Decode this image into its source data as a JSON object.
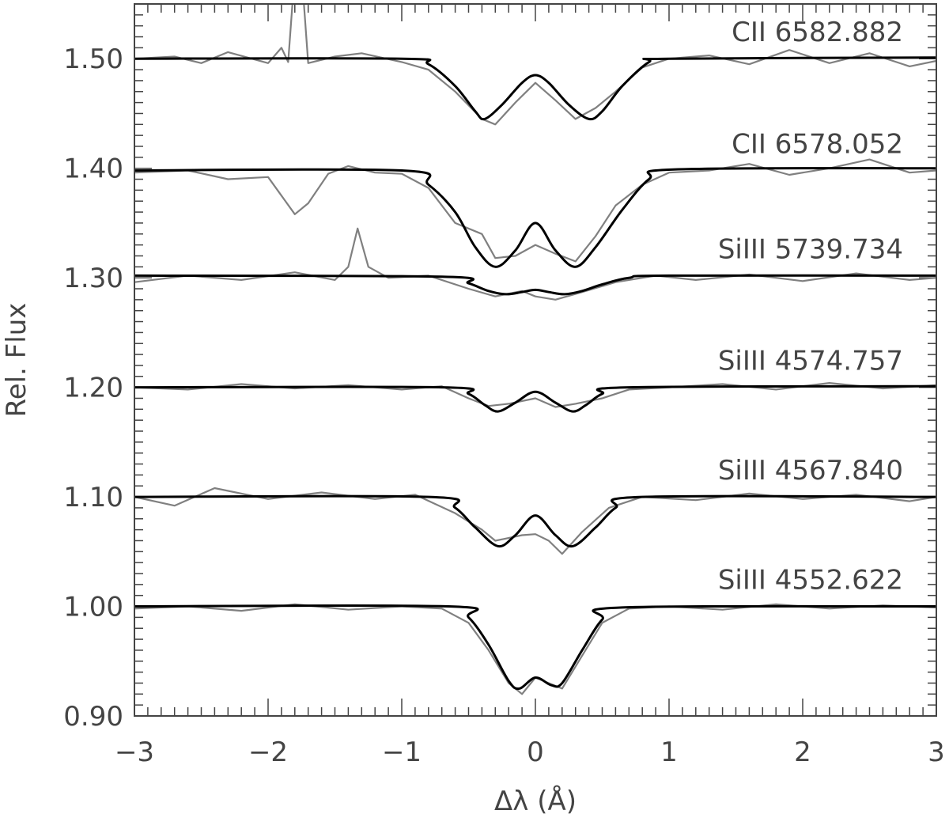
{
  "chart_data": {
    "type": "line",
    "xlabel": "Δλ (Å)",
    "ylabel": "Rel. Flux",
    "xlim": [
      -3,
      3
    ],
    "ylim": [
      0.9,
      1.55
    ],
    "x_ticks": [
      -3,
      -2,
      -1,
      0,
      1,
      2,
      3
    ],
    "x_tick_labels": [
      "−3",
      "−2",
      "−1",
      "0",
      "1",
      "2",
      "3"
    ],
    "y_ticks": [
      0.9,
      1.0,
      1.1,
      1.2,
      1.3,
      1.4,
      1.5
    ],
    "y_tick_labels": [
      "0.90",
      "1.00",
      "1.10",
      "1.20",
      "1.30",
      "1.40",
      "1.50"
    ],
    "colors": {
      "model": "#000000",
      "observed": "#808080"
    },
    "series": [
      {
        "name": "CII 6582.882",
        "continuum": 1.5,
        "model": [
          [
            -3,
            1.5
          ],
          [
            -1.0,
            1.5
          ],
          [
            -0.8,
            1.495
          ],
          [
            -0.6,
            1.475
          ],
          [
            -0.45,
            1.452
          ],
          [
            -0.38,
            1.445
          ],
          [
            -0.25,
            1.458
          ],
          [
            -0.1,
            1.478
          ],
          [
            0,
            1.485
          ],
          [
            0.1,
            1.478
          ],
          [
            0.25,
            1.458
          ],
          [
            0.4,
            1.445
          ],
          [
            0.5,
            1.452
          ],
          [
            0.65,
            1.475
          ],
          [
            0.85,
            1.497
          ],
          [
            1.0,
            1.5
          ],
          [
            3,
            1.501
          ]
        ],
        "observed": [
          [
            -3,
            1.5
          ],
          [
            -2.7,
            1.502
          ],
          [
            -2.5,
            1.496
          ],
          [
            -2.3,
            1.506
          ],
          [
            -2.0,
            1.496
          ],
          [
            -1.9,
            1.51
          ],
          [
            -1.85,
            1.497
          ],
          [
            -1.8,
            1.58
          ],
          [
            -1.75,
            1.58
          ],
          [
            -1.7,
            1.496
          ],
          [
            -1.5,
            1.502
          ],
          [
            -1.3,
            1.505
          ],
          [
            -1.0,
            1.497
          ],
          [
            -0.8,
            1.49
          ],
          [
            -0.6,
            1.47
          ],
          [
            -0.4,
            1.445
          ],
          [
            -0.3,
            1.44
          ],
          [
            -0.15,
            1.46
          ],
          [
            0,
            1.478
          ],
          [
            0.15,
            1.462
          ],
          [
            0.3,
            1.445
          ],
          [
            0.45,
            1.455
          ],
          [
            0.6,
            1.47
          ],
          [
            0.8,
            1.492
          ],
          [
            1.0,
            1.5
          ],
          [
            1.3,
            1.503
          ],
          [
            1.6,
            1.495
          ],
          [
            1.9,
            1.508
          ],
          [
            2.2,
            1.496
          ],
          [
            2.5,
            1.505
          ],
          [
            2.8,
            1.493
          ],
          [
            3,
            1.498
          ]
        ]
      },
      {
        "name": "CII 6578.052",
        "continuum": 1.398,
        "model": [
          [
            -3,
            1.398
          ],
          [
            -1.0,
            1.398
          ],
          [
            -0.8,
            1.385
          ],
          [
            -0.6,
            1.36
          ],
          [
            -0.45,
            1.328
          ],
          [
            -0.3,
            1.31
          ],
          [
            -0.15,
            1.325
          ],
          [
            0,
            1.35
          ],
          [
            0.15,
            1.325
          ],
          [
            0.3,
            1.31
          ],
          [
            0.45,
            1.328
          ],
          [
            0.65,
            1.362
          ],
          [
            0.85,
            1.39
          ],
          [
            1.05,
            1.399
          ],
          [
            3,
            1.4
          ]
        ],
        "observed": [
          [
            -3,
            1.396
          ],
          [
            -2.6,
            1.398
          ],
          [
            -2.3,
            1.39
          ],
          [
            -2.0,
            1.392
          ],
          [
            -1.9,
            1.375
          ],
          [
            -1.8,
            1.358
          ],
          [
            -1.7,
            1.368
          ],
          [
            -1.55,
            1.395
          ],
          [
            -1.4,
            1.402
          ],
          [
            -1.2,
            1.396
          ],
          [
            -1.0,
            1.395
          ],
          [
            -0.8,
            1.382
          ],
          [
            -0.6,
            1.35
          ],
          [
            -0.4,
            1.34
          ],
          [
            -0.3,
            1.318
          ],
          [
            -0.15,
            1.32
          ],
          [
            0,
            1.33
          ],
          [
            0.15,
            1.322
          ],
          [
            0.3,
            1.315
          ],
          [
            0.45,
            1.338
          ],
          [
            0.6,
            1.366
          ],
          [
            0.8,
            1.385
          ],
          [
            1.0,
            1.396
          ],
          [
            1.3,
            1.398
          ],
          [
            1.6,
            1.404
          ],
          [
            1.9,
            1.394
          ],
          [
            2.2,
            1.4
          ],
          [
            2.5,
            1.408
          ],
          [
            2.8,
            1.396
          ],
          [
            3,
            1.398
          ]
        ]
      },
      {
        "name": "SiIII 5739.734",
        "continuum": 1.302,
        "model": [
          [
            -3,
            1.302
          ],
          [
            -0.7,
            1.301
          ],
          [
            -0.5,
            1.295
          ],
          [
            -0.35,
            1.288
          ],
          [
            -0.22,
            1.285
          ],
          [
            -0.1,
            1.287
          ],
          [
            0,
            1.289
          ],
          [
            0.1,
            1.287
          ],
          [
            0.22,
            1.285
          ],
          [
            0.35,
            1.288
          ],
          [
            0.5,
            1.294
          ],
          [
            0.7,
            1.3
          ],
          [
            1.0,
            1.302
          ],
          [
            3,
            1.302
          ]
        ],
        "observed": [
          [
            -3,
            1.296
          ],
          [
            -2.6,
            1.302
          ],
          [
            -2.2,
            1.298
          ],
          [
            -1.8,
            1.305
          ],
          [
            -1.5,
            1.298
          ],
          [
            -1.4,
            1.31
          ],
          [
            -1.33,
            1.345
          ],
          [
            -1.25,
            1.31
          ],
          [
            -1.1,
            1.3
          ],
          [
            -0.8,
            1.302
          ],
          [
            -0.5,
            1.29
          ],
          [
            -0.3,
            1.283
          ],
          [
            -0.1,
            1.288
          ],
          [
            0,
            1.283
          ],
          [
            0.15,
            1.28
          ],
          [
            0.35,
            1.287
          ],
          [
            0.6,
            1.296
          ],
          [
            0.9,
            1.302
          ],
          [
            1.2,
            1.298
          ],
          [
            1.6,
            1.303
          ],
          [
            2.0,
            1.297
          ],
          [
            2.4,
            1.304
          ],
          [
            2.8,
            1.298
          ],
          [
            3,
            1.3
          ]
        ]
      },
      {
        "name": "SiIII 4574.757",
        "continuum": 1.2,
        "model": [
          [
            -3,
            1.2
          ],
          [
            -0.7,
            1.2
          ],
          [
            -0.5,
            1.194
          ],
          [
            -0.38,
            1.184
          ],
          [
            -0.28,
            1.178
          ],
          [
            -0.15,
            1.186
          ],
          [
            0,
            1.196
          ],
          [
            0.15,
            1.186
          ],
          [
            0.28,
            1.178
          ],
          [
            0.38,
            1.184
          ],
          [
            0.5,
            1.194
          ],
          [
            0.7,
            1.2
          ],
          [
            3,
            1.201
          ]
        ],
        "observed": [
          [
            -3,
            1.2
          ],
          [
            -2.6,
            1.198
          ],
          [
            -2.2,
            1.203
          ],
          [
            -1.8,
            1.199
          ],
          [
            -1.4,
            1.202
          ],
          [
            -1.0,
            1.198
          ],
          [
            -0.7,
            1.201
          ],
          [
            -0.5,
            1.19
          ],
          [
            -0.35,
            1.183
          ],
          [
            -0.2,
            1.185
          ],
          [
            0,
            1.19
          ],
          [
            0.15,
            1.182
          ],
          [
            0.3,
            1.185
          ],
          [
            0.5,
            1.19
          ],
          [
            0.7,
            1.198
          ],
          [
            1.0,
            1.2
          ],
          [
            1.4,
            1.203
          ],
          [
            1.8,
            1.198
          ],
          [
            2.2,
            1.204
          ],
          [
            2.6,
            1.199
          ],
          [
            3,
            1.202
          ]
        ]
      },
      {
        "name": "SiIII 4567.840",
        "continuum": 1.1,
        "model": [
          [
            -3,
            1.1
          ],
          [
            -0.8,
            1.1
          ],
          [
            -0.6,
            1.09
          ],
          [
            -0.45,
            1.072
          ],
          [
            -0.28,
            1.055
          ],
          [
            -0.15,
            1.065
          ],
          [
            0,
            1.083
          ],
          [
            0.15,
            1.065
          ],
          [
            0.28,
            1.055
          ],
          [
            0.45,
            1.072
          ],
          [
            0.6,
            1.09
          ],
          [
            0.8,
            1.1
          ],
          [
            3,
            1.1
          ]
        ],
        "observed": [
          [
            -3,
            1.1
          ],
          [
            -2.7,
            1.092
          ],
          [
            -2.4,
            1.108
          ],
          [
            -2.0,
            1.098
          ],
          [
            -1.6,
            1.104
          ],
          [
            -1.2,
            1.098
          ],
          [
            -0.9,
            1.102
          ],
          [
            -0.6,
            1.085
          ],
          [
            -0.4,
            1.07
          ],
          [
            -0.3,
            1.06
          ],
          [
            -0.1,
            1.065
          ],
          [
            0,
            1.066
          ],
          [
            0.1,
            1.06
          ],
          [
            0.2,
            1.048
          ],
          [
            0.35,
            1.068
          ],
          [
            0.55,
            1.09
          ],
          [
            0.8,
            1.1
          ],
          [
            1.2,
            1.097
          ],
          [
            1.6,
            1.103
          ],
          [
            2.0,
            1.098
          ],
          [
            2.4,
            1.102
          ],
          [
            2.8,
            1.096
          ],
          [
            3,
            1.1
          ]
        ]
      },
      {
        "name": "SiIII 4552.622",
        "continuum": 1.0,
        "model": [
          [
            -3,
            1.0
          ],
          [
            -0.65,
            1.0
          ],
          [
            -0.5,
            0.99
          ],
          [
            -0.35,
            0.965
          ],
          [
            -0.2,
            0.932
          ],
          [
            -0.12,
            0.925
          ],
          [
            0,
            0.935
          ],
          [
            0.12,
            0.928
          ],
          [
            0.2,
            0.93
          ],
          [
            0.35,
            0.96
          ],
          [
            0.5,
            0.988
          ],
          [
            0.65,
            0.999
          ],
          [
            3,
            1.0
          ]
        ],
        "observed": [
          [
            -3,
            0.998
          ],
          [
            -2.6,
            1.0
          ],
          [
            -2.2,
            0.996
          ],
          [
            -1.8,
            1.002
          ],
          [
            -1.4,
            0.997
          ],
          [
            -1.0,
            1.0
          ],
          [
            -0.7,
            0.998
          ],
          [
            -0.5,
            0.985
          ],
          [
            -0.35,
            0.96
          ],
          [
            -0.2,
            0.93
          ],
          [
            -0.1,
            0.92
          ],
          [
            0,
            0.935
          ],
          [
            0.1,
            0.93
          ],
          [
            0.2,
            0.925
          ],
          [
            0.35,
            0.955
          ],
          [
            0.5,
            0.985
          ],
          [
            0.7,
            0.998
          ],
          [
            1.0,
            1.0
          ],
          [
            1.4,
            0.997
          ],
          [
            1.8,
            1.002
          ],
          [
            2.2,
            0.998
          ],
          [
            2.6,
            1.001
          ],
          [
            3,
            0.999
          ]
        ]
      }
    ]
  }
}
